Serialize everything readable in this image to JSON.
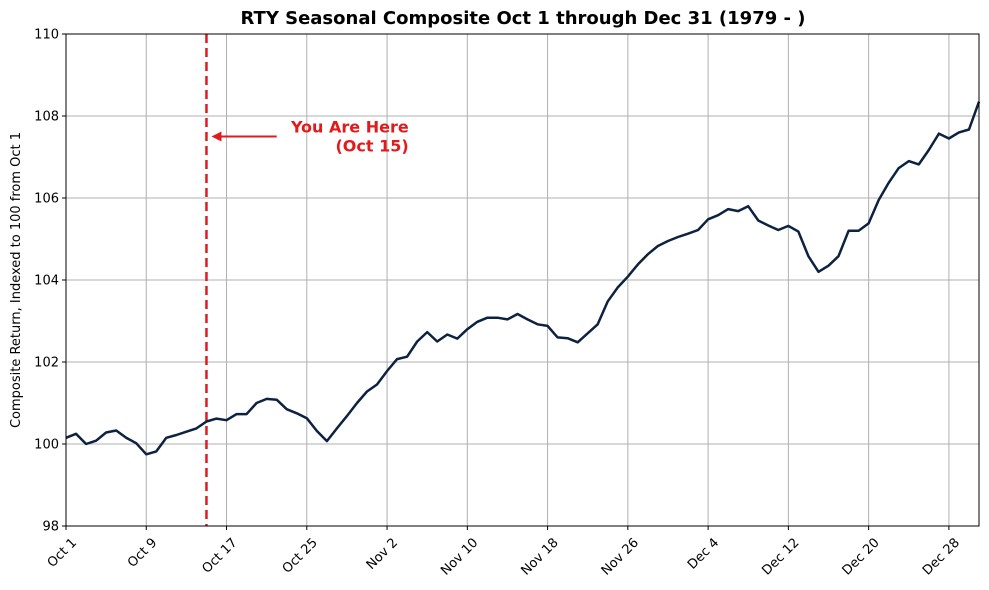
{
  "chart_data": {
    "type": "line",
    "title": "RTY Seasonal Composite Oct 1 through Dec 31 (1979 - )",
    "xlabel": "",
    "ylabel": "Composite Return, Indexed to 100 from Oct 1",
    "ylim": [
      98,
      110
    ],
    "xlim": [
      0,
      91
    ],
    "yticks": [
      98,
      100,
      102,
      104,
      106,
      108,
      110
    ],
    "xticks": [
      {
        "pos": 0,
        "label": "Oct 1"
      },
      {
        "pos": 8,
        "label": "Oct 9"
      },
      {
        "pos": 16,
        "label": "Oct 17"
      },
      {
        "pos": 24,
        "label": "Oct 25"
      },
      {
        "pos": 32,
        "label": "Nov 2"
      },
      {
        "pos": 40,
        "label": "Nov 10"
      },
      {
        "pos": 48,
        "label": "Nov 18"
      },
      {
        "pos": 56,
        "label": "Nov 26"
      },
      {
        "pos": 64,
        "label": "Dec 4"
      },
      {
        "pos": 72,
        "label": "Dec 12"
      },
      {
        "pos": 80,
        "label": "Dec 20"
      },
      {
        "pos": 88,
        "label": "Dec 28"
      }
    ],
    "grid": true,
    "series": [
      {
        "name": "RTY Seasonal Composite",
        "color": "#0d2240",
        "x": [
          0,
          1,
          2,
          3,
          4,
          5,
          6,
          7,
          8,
          9,
          10,
          11,
          12,
          13,
          14,
          15,
          16,
          17,
          18,
          19,
          20,
          21,
          22,
          23,
          24,
          25,
          26,
          27,
          28,
          29,
          30,
          31,
          32,
          33,
          34,
          35,
          36,
          37,
          38,
          39,
          40,
          41,
          42,
          43,
          44,
          45,
          46,
          47,
          48,
          49,
          50,
          51,
          52,
          53,
          54,
          55,
          56,
          57,
          58,
          59,
          60,
          61,
          62,
          63,
          64,
          65,
          66,
          67,
          68,
          69,
          70,
          71,
          72,
          73,
          74,
          75,
          76,
          77,
          78,
          79,
          80,
          81,
          82,
          83,
          84,
          85,
          86,
          87,
          88,
          89,
          90,
          91
        ],
        "values": [
          100.15,
          100.25,
          100.0,
          100.08,
          100.28,
          100.33,
          100.15,
          100.02,
          99.75,
          99.82,
          100.15,
          100.22,
          100.3,
          100.38,
          100.55,
          100.62,
          100.58,
          100.73,
          100.73,
          101.0,
          101.1,
          101.08,
          100.85,
          100.75,
          100.63,
          100.32,
          100.07,
          100.38,
          100.68,
          101.0,
          101.28,
          101.45,
          101.78,
          102.07,
          102.13,
          102.5,
          102.73,
          102.5,
          102.67,
          102.57,
          102.8,
          102.98,
          103.08,
          103.08,
          103.04,
          103.17,
          103.04,
          102.92,
          102.88,
          102.6,
          102.58,
          102.48,
          102.7,
          102.92,
          103.48,
          103.82,
          104.08,
          104.38,
          104.63,
          104.83,
          104.95,
          105.05,
          105.13,
          105.22,
          105.48,
          105.58,
          105.73,
          105.68,
          105.8,
          105.45,
          105.33,
          105.22,
          105.32,
          105.18,
          104.58,
          104.2,
          104.35,
          104.58,
          105.2,
          105.2,
          105.38,
          105.95,
          106.37,
          106.73,
          106.9,
          106.82,
          107.17,
          107.57,
          107.45,
          107.6,
          107.67,
          108.35
        ]
      }
    ],
    "vline": {
      "x": 14,
      "color": "#e31a1c",
      "style": "dashed"
    },
    "annotation": {
      "line1": "You Are Here",
      "line2": "(Oct 15)",
      "color": "#e31a1c",
      "arrow_target": {
        "x": 14.5,
        "y": 107.5
      },
      "text_anchor": {
        "x": 21,
        "y": 107.5
      }
    }
  }
}
